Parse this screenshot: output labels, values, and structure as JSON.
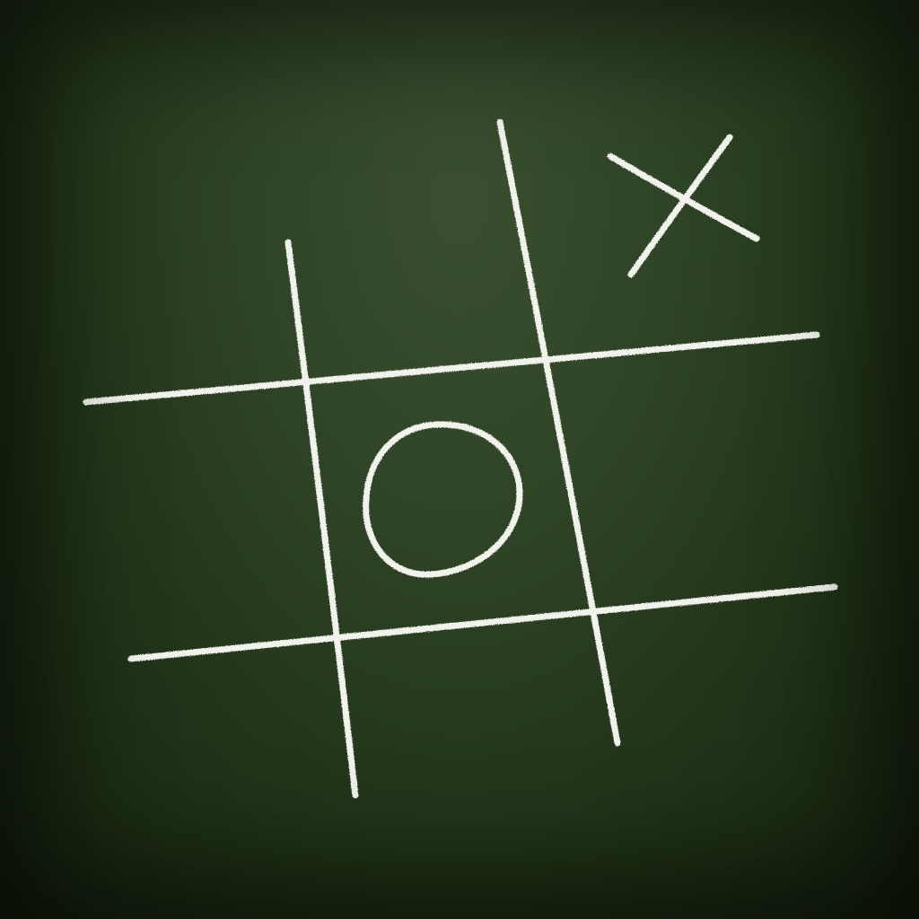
{
  "game": {
    "type": "tic-tac-toe",
    "chalk_color": "#f2f2ec",
    "board_color": "#2f4326",
    "grid": {
      "rows": 3,
      "cols": 3
    },
    "cells": [
      [
        "",
        "",
        "X"
      ],
      [
        "",
        "O",
        ""
      ],
      [
        "",
        "",
        ""
      ]
    ],
    "marks": [
      {
        "symbol": "X",
        "row": 0,
        "col": 2,
        "glyph": "x-mark"
      },
      {
        "symbol": "O",
        "row": 1,
        "col": 1,
        "glyph": "o-mark"
      }
    ]
  }
}
